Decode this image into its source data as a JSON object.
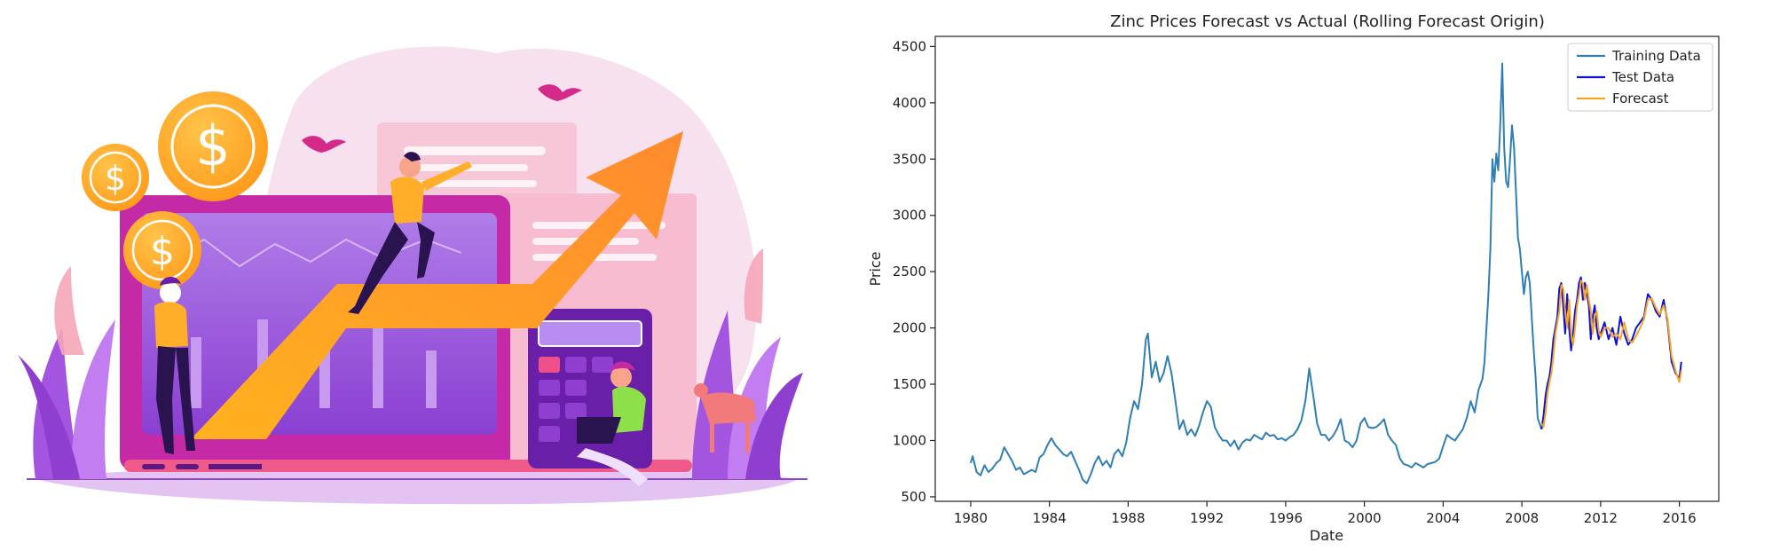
{
  "colors": {
    "training": "#2f7fb5",
    "test": "#1010dd",
    "forecast": "#f5a623",
    "orange": "#ff9a2e",
    "purple": "#9b4dd6",
    "magenta": "#d42aa8",
    "pink": "#f6c8dd"
  },
  "illustration": {
    "icons": [
      "dollar-coin-icon",
      "growth-arrow-icon",
      "laptop-icon",
      "calculator-icon",
      "bird-icon",
      "plant-icon"
    ]
  },
  "chart_data": {
    "type": "line",
    "title": "Zinc Prices Forecast vs Actual (Rolling Forecast Origin)",
    "xlabel": "Date",
    "ylabel": "Price",
    "xlim": [
      1978.2,
      2018.0
    ],
    "ylim": [
      460,
      4590
    ],
    "xticks": [
      1980,
      1984,
      1988,
      1992,
      1996,
      2000,
      2004,
      2008,
      2012,
      2016
    ],
    "yticks": [
      500,
      1000,
      1500,
      2000,
      2500,
      3000,
      3500,
      4000,
      4500
    ],
    "legend": {
      "placement": "top-right",
      "entries": [
        "Training Data",
        "Test Data",
        "Forecast"
      ]
    },
    "series": [
      {
        "name": "Training Data",
        "x": [
          1980.0,
          1980.1,
          1980.3,
          1980.5,
          1980.7,
          1980.9,
          1981.1,
          1981.3,
          1981.5,
          1981.7,
          1981.9,
          1982.1,
          1982.3,
          1982.5,
          1982.7,
          1982.9,
          1983.1,
          1983.3,
          1983.5,
          1983.7,
          1983.9,
          1984.1,
          1984.3,
          1984.5,
          1984.7,
          1984.9,
          1985.1,
          1985.3,
          1985.5,
          1985.7,
          1985.9,
          1986.1,
          1986.3,
          1986.5,
          1986.7,
          1986.9,
          1987.1,
          1987.3,
          1987.5,
          1987.7,
          1987.9,
          1988.1,
          1988.3,
          1988.5,
          1988.7,
          1988.9,
          1989.0,
          1989.2,
          1989.4,
          1989.6,
          1989.8,
          1990.0,
          1990.2,
          1990.4,
          1990.6,
          1990.8,
          1991.0,
          1991.2,
          1991.4,
          1991.6,
          1991.8,
          1992.0,
          1992.2,
          1992.4,
          1992.6,
          1992.8,
          1993.0,
          1993.2,
          1993.4,
          1993.6,
          1993.8,
          1994.0,
          1994.2,
          1994.4,
          1994.6,
          1994.8,
          1995.0,
          1995.2,
          1995.4,
          1995.6,
          1995.8,
          1996.0,
          1996.2,
          1996.4,
          1996.6,
          1996.8,
          1997.0,
          1997.2,
          1997.4,
          1997.6,
          1997.8,
          1998.0,
          1998.2,
          1998.4,
          1998.6,
          1998.8,
          1999.0,
          1999.2,
          1999.4,
          1999.6,
          1999.8,
          2000.0,
          2000.2,
          2000.4,
          2000.6,
          2000.8,
          2001.0,
          2001.2,
          2001.4,
          2001.6,
          2001.8,
          2002.0,
          2002.2,
          2002.4,
          2002.6,
          2002.8,
          2003.0,
          2003.2,
          2003.4,
          2003.6,
          2003.8,
          2004.0,
          2004.2,
          2004.4,
          2004.6,
          2004.8,
          2005.0,
          2005.2,
          2005.4,
          2005.6,
          2005.8,
          2006.0,
          2006.1,
          2006.2,
          2006.3,
          2006.4,
          2006.5,
          2006.6,
          2006.7,
          2006.8,
          2006.9,
          2007.0,
          2007.1,
          2007.2,
          2007.3,
          2007.4,
          2007.5,
          2007.6,
          2007.7,
          2007.8,
          2007.9,
          2008.0,
          2008.1,
          2008.2,
          2008.3,
          2008.4,
          2008.5,
          2008.6,
          2008.7,
          2008.8,
          2008.9,
          2009.0
        ],
        "y": [
          800,
          860,
          720,
          690,
          780,
          720,
          750,
          800,
          830,
          940,
          880,
          820,
          740,
          760,
          700,
          720,
          740,
          720,
          850,
          880,
          960,
          1020,
          960,
          920,
          880,
          860,
          900,
          820,
          740,
          650,
          620,
          700,
          800,
          860,
          780,
          820,
          760,
          880,
          920,
          860,
          980,
          1200,
          1350,
          1280,
          1500,
          1900,
          1950,
          1560,
          1700,
          1520,
          1600,
          1750,
          1600,
          1350,
          1100,
          1180,
          1050,
          1100,
          1040,
          1130,
          1250,
          1350,
          1300,
          1120,
          1050,
          1000,
          1000,
          950,
          1000,
          920,
          980,
          1010,
          1000,
          1050,
          1030,
          1010,
          1070,
          1040,
          1050,
          1010,
          1020,
          1000,
          1030,
          1050,
          1100,
          1180,
          1350,
          1640,
          1400,
          1150,
          1050,
          1050,
          1000,
          1040,
          1100,
          1190,
          1000,
          980,
          940,
          1000,
          1150,
          1200,
          1120,
          1110,
          1120,
          1150,
          1190,
          1050,
          1000,
          960,
          840,
          790,
          780,
          760,
          800,
          780,
          760,
          790,
          800,
          810,
          840,
          950,
          1050,
          1020,
          1000,
          1050,
          1100,
          1200,
          1350,
          1250,
          1450,
          1550,
          1700,
          2000,
          2300,
          2700,
          3500,
          3300,
          3550,
          3400,
          3800,
          4350,
          3600,
          3300,
          3250,
          3500,
          3800,
          3600,
          3200,
          2800,
          2700,
          2500,
          2300,
          2450,
          2500,
          2400,
          2100,
          1800,
          1550,
          1200,
          1150,
          1100
        ]
      },
      {
        "name": "Test Data",
        "x": [
          2009.0,
          2009.1,
          2009.2,
          2009.3,
          2009.4,
          2009.5,
          2009.6,
          2009.7,
          2009.8,
          2009.9,
          2010.0,
          2010.1,
          2010.2,
          2010.3,
          2010.4,
          2010.5,
          2010.6,
          2010.7,
          2010.8,
          2010.9,
          2011.0,
          2011.1,
          2011.2,
          2011.3,
          2011.4,
          2011.5,
          2011.6,
          2011.7,
          2011.8,
          2011.9,
          2012.0,
          2012.2,
          2012.4,
          2012.6,
          2012.8,
          2013.0,
          2013.2,
          2013.4,
          2013.6,
          2013.8,
          2014.0,
          2014.2,
          2014.4,
          2014.6,
          2014.8,
          2015.0,
          2015.2,
          2015.4,
          2015.6,
          2015.8,
          2016.0,
          2016.1
        ],
        "y": [
          1100,
          1220,
          1400,
          1500,
          1570,
          1700,
          1900,
          2000,
          2100,
          2350,
          2400,
          2200,
          1950,
          2300,
          2000,
          1800,
          1950,
          2150,
          2250,
          2400,
          2450,
          2250,
          2400,
          2300,
          2200,
          1900,
          2100,
          2200,
          2000,
          1900,
          1950,
          2050,
          1900,
          2000,
          1850,
          2100,
          1950,
          1850,
          1900,
          2000,
          2050,
          2100,
          2300,
          2250,
          2150,
          2100,
          2250,
          2050,
          1700,
          1600,
          1550,
          1700
        ]
      },
      {
        "name": "Forecast",
        "x": [
          2009.0,
          2009.1,
          2009.2,
          2009.3,
          2009.4,
          2009.5,
          2009.6,
          2009.7,
          2009.8,
          2009.9,
          2010.0,
          2010.1,
          2010.2,
          2010.3,
          2010.4,
          2010.5,
          2010.6,
          2010.7,
          2010.8,
          2010.9,
          2011.0,
          2011.1,
          2011.2,
          2011.3,
          2011.4,
          2011.5,
          2011.6,
          2011.7,
          2011.8,
          2011.9,
          2012.0,
          2012.2,
          2012.4,
          2012.6,
          2012.8,
          2013.0,
          2013.2,
          2013.4,
          2013.6,
          2013.8,
          2014.0,
          2014.2,
          2014.4,
          2014.6,
          2014.8,
          2015.0,
          2015.2,
          2015.4,
          2015.6,
          2015.8,
          2016.0,
          2016.1
        ],
        "y": [
          1150,
          1120,
          1250,
          1420,
          1520,
          1600,
          1750,
          1950,
          2050,
          2150,
          2380,
          2350,
          2150,
          2000,
          2250,
          1950,
          1850,
          2000,
          2200,
          2300,
          2420,
          2400,
          2250,
          2380,
          2250,
          2150,
          1950,
          2100,
          2150,
          1980,
          1920,
          2000,
          2000,
          1920,
          1950,
          1900,
          2050,
          1900,
          1870,
          1930,
          2000,
          2080,
          2250,
          2260,
          2180,
          2120,
          2200,
          2080,
          1750,
          1620,
          1520,
          1620
        ]
      }
    ]
  }
}
